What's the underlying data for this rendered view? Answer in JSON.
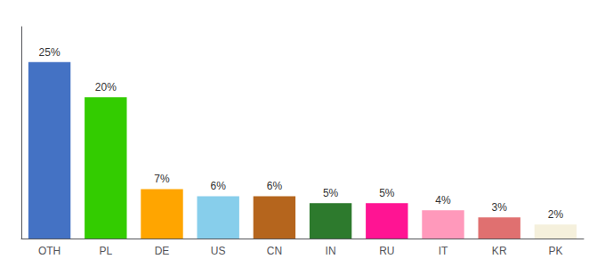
{
  "chart_data": {
    "type": "bar",
    "categories": [
      "OTH",
      "PL",
      "DE",
      "US",
      "CN",
      "IN",
      "RU",
      "IT",
      "KR",
      "PK"
    ],
    "values": [
      25,
      20,
      7,
      6,
      6,
      5,
      5,
      4,
      3,
      2
    ],
    "value_labels": [
      "25%",
      "20%",
      "7%",
      "6%",
      "6%",
      "5%",
      "5%",
      "4%",
      "3%",
      "2%"
    ],
    "colors": [
      "#4472c4",
      "#33cc00",
      "#ffa500",
      "#87ceeb",
      "#b5651d",
      "#2d7a2d",
      "#ff1493",
      "#ff99bb",
      "#e07070",
      "#f5f0dc"
    ],
    "ylim": [
      0,
      30
    ],
    "data_labels": true,
    "tick_labels": "x",
    "grid": false
  }
}
